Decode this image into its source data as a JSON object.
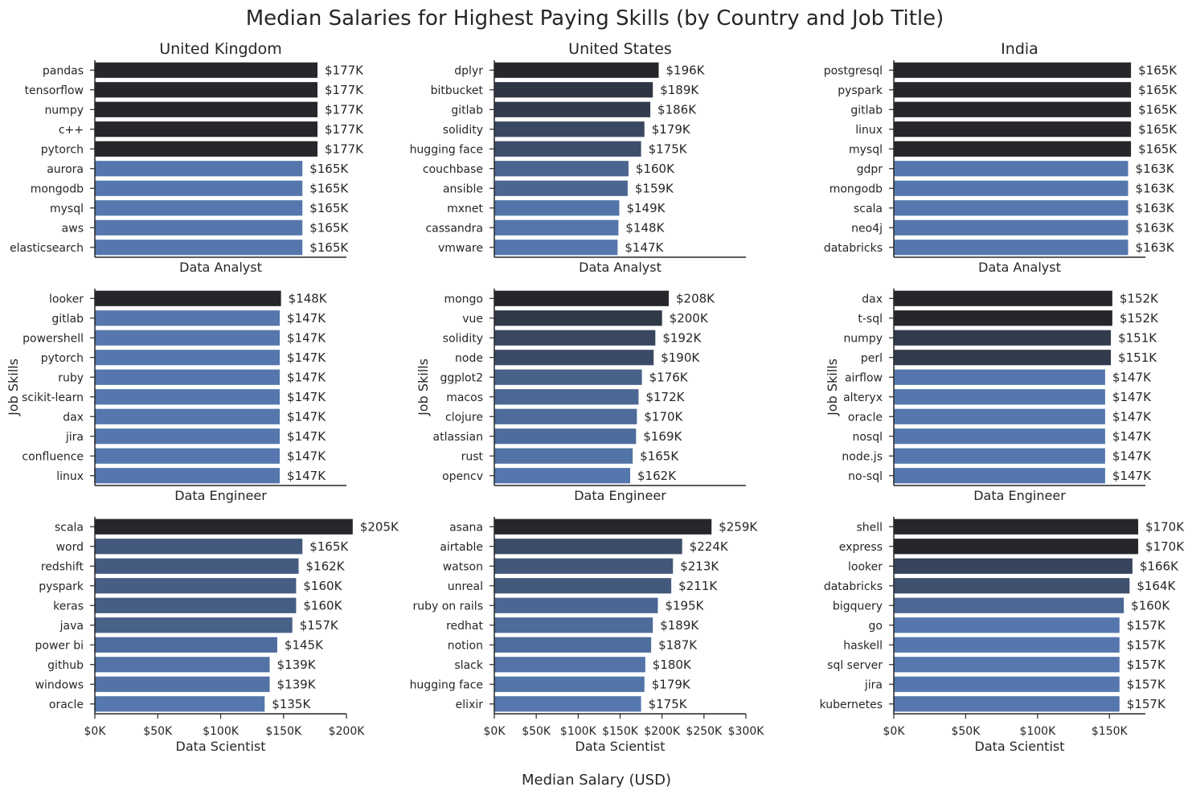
{
  "title": "Median Salaries for Highest Paying Skills (by Country and Job Title)",
  "x_label": "Median Salary (USD)",
  "y_label": "Job Skills",
  "colors": {
    "dark": "#25272b",
    "light": "#5577ad",
    "axis": "#262626",
    "text": "#262626"
  },
  "chart_data": [
    {
      "type": "bar",
      "orientation": "horizontal",
      "country": "United Kingdom",
      "job_title": "Data Analyst",
      "xlim": [
        0,
        200000
      ],
      "xticks": [],
      "categories": [
        "pandas",
        "tensorflow",
        "numpy",
        "c++",
        "pytorch",
        "aurora",
        "mongodb",
        "mysql",
        "aws",
        "elasticsearch"
      ],
      "values": [
        177000,
        177000,
        177000,
        177000,
        177000,
        165000,
        165000,
        165000,
        165000,
        165000
      ],
      "labels": [
        "$177K",
        "$177K",
        "$177K",
        "$177K",
        "$177K",
        "$165K",
        "$165K",
        "$165K",
        "$165K",
        "$165K"
      ]
    },
    {
      "type": "bar",
      "orientation": "horizontal",
      "country": "United States",
      "job_title": "Data Analyst",
      "xlim": [
        0,
        300000
      ],
      "xticks": [],
      "categories": [
        "dplyr",
        "bitbucket",
        "gitlab",
        "solidity",
        "hugging face",
        "couchbase",
        "ansible",
        "mxnet",
        "cassandra",
        "vmware"
      ],
      "values": [
        196000,
        189000,
        186000,
        179000,
        175000,
        160000,
        159000,
        149000,
        148000,
        147000
      ],
      "labels": [
        "$196K",
        "$189K",
        "$186K",
        "$179K",
        "$175K",
        "$160K",
        "$159K",
        "$149K",
        "$148K",
        "$147K"
      ]
    },
    {
      "type": "bar",
      "orientation": "horizontal",
      "country": "India",
      "job_title": "Data Analyst",
      "xlim": [
        0,
        175000
      ],
      "xticks": [],
      "categories": [
        "postgresql",
        "pyspark",
        "gitlab",
        "linux",
        "mysql",
        "gdpr",
        "mongodb",
        "scala",
        "neo4j",
        "databricks"
      ],
      "values": [
        165000,
        165000,
        165000,
        165000,
        165000,
        163000,
        163000,
        163000,
        163000,
        163000
      ],
      "labels": [
        "$165K",
        "$165K",
        "$165K",
        "$165K",
        "$165K",
        "$163K",
        "$163K",
        "$163K",
        "$163K",
        "$163K"
      ]
    },
    {
      "type": "bar",
      "orientation": "horizontal",
      "country": "",
      "job_title": "Data Engineer",
      "xlim": [
        0,
        200000
      ],
      "xticks": [],
      "categories": [
        "looker",
        "gitlab",
        "powershell",
        "pytorch",
        "ruby",
        "scikit-learn",
        "dax",
        "jira",
        "confluence",
        "linux"
      ],
      "values": [
        148000,
        147000,
        147000,
        147000,
        147000,
        147000,
        147000,
        147000,
        147000,
        147000
      ],
      "labels": [
        "$148K",
        "$147K",
        "$147K",
        "$147K",
        "$147K",
        "$147K",
        "$147K",
        "$147K",
        "$147K",
        "$147K"
      ]
    },
    {
      "type": "bar",
      "orientation": "horizontal",
      "country": "",
      "job_title": "Data Engineer",
      "xlim": [
        0,
        300000
      ],
      "xticks": [],
      "categories": [
        "mongo",
        "vue",
        "solidity",
        "node",
        "ggplot2",
        "macos",
        "clojure",
        "atlassian",
        "rust",
        "opencv"
      ],
      "values": [
        208000,
        200000,
        192000,
        190000,
        176000,
        172000,
        170000,
        169000,
        165000,
        162000
      ],
      "labels": [
        "$208K",
        "$200K",
        "$192K",
        "$190K",
        "$176K",
        "$172K",
        "$170K",
        "$169K",
        "$165K",
        "$162K"
      ]
    },
    {
      "type": "bar",
      "orientation": "horizontal",
      "country": "",
      "job_title": "Data Engineer",
      "xlim": [
        0,
        175000
      ],
      "xticks": [],
      "categories": [
        "dax",
        "t-sql",
        "numpy",
        "perl",
        "airflow",
        "alteryx",
        "oracle",
        "nosql",
        "node.js",
        "no-sql"
      ],
      "values": [
        152000,
        152000,
        151000,
        151000,
        147000,
        147000,
        147000,
        147000,
        147000,
        147000
      ],
      "labels": [
        "$152K",
        "$152K",
        "$151K",
        "$151K",
        "$147K",
        "$147K",
        "$147K",
        "$147K",
        "$147K",
        "$147K"
      ]
    },
    {
      "type": "bar",
      "orientation": "horizontal",
      "country": "",
      "job_title": "Data Scientist",
      "xlim": [
        0,
        200000
      ],
      "xticks": [
        {
          "v": 0,
          "t": "$0K"
        },
        {
          "v": 50000,
          "t": "$50K"
        },
        {
          "v": 100000,
          "t": "$100K"
        },
        {
          "v": 150000,
          "t": "$150K"
        },
        {
          "v": 200000,
          "t": "$200K"
        }
      ],
      "categories": [
        "scala",
        "word",
        "redshift",
        "pyspark",
        "keras",
        "java",
        "power bi",
        "github",
        "windows",
        "oracle"
      ],
      "values": [
        205000,
        165000,
        162000,
        160000,
        160000,
        157000,
        145000,
        139000,
        139000,
        135000
      ],
      "labels": [
        "$205K",
        "$165K",
        "$162K",
        "$160K",
        "$160K",
        "$157K",
        "$145K",
        "$139K",
        "$139K",
        "$135K"
      ]
    },
    {
      "type": "bar",
      "orientation": "horizontal",
      "country": "",
      "job_title": "Data Scientist",
      "xlim": [
        0,
        300000
      ],
      "xticks": [
        {
          "v": 0,
          "t": "$0K"
        },
        {
          "v": 50000,
          "t": "$50K"
        },
        {
          "v": 100000,
          "t": "$100K"
        },
        {
          "v": 150000,
          "t": "$150K"
        },
        {
          "v": 200000,
          "t": "$200K"
        },
        {
          "v": 250000,
          "t": "$250K"
        },
        {
          "v": 300000,
          "t": "$300K"
        }
      ],
      "categories": [
        "asana",
        "airtable",
        "watson",
        "unreal",
        "ruby on rails",
        "redhat",
        "notion",
        "slack",
        "hugging face",
        "elixir"
      ],
      "values": [
        259000,
        224000,
        213000,
        211000,
        195000,
        189000,
        187000,
        180000,
        179000,
        175000
      ],
      "labels": [
        "$259K",
        "$224K",
        "$213K",
        "$211K",
        "$195K",
        "$189K",
        "$187K",
        "$180K",
        "$179K",
        "$175K"
      ]
    },
    {
      "type": "bar",
      "orientation": "horizontal",
      "country": "",
      "job_title": "Data Scientist",
      "xlim": [
        0,
        175000
      ],
      "xticks": [
        {
          "v": 0,
          "t": "$0K"
        },
        {
          "v": 50000,
          "t": "$50K"
        },
        {
          "v": 100000,
          "t": "$100K"
        },
        {
          "v": 150000,
          "t": "$150K"
        }
      ],
      "categories": [
        "shell",
        "express",
        "looker",
        "databricks",
        "bigquery",
        "go",
        "haskell",
        "sql server",
        "jira",
        "kubernetes"
      ],
      "values": [
        170000,
        170000,
        166000,
        164000,
        160000,
        157000,
        157000,
        157000,
        157000,
        157000
      ],
      "labels": [
        "$170K",
        "$170K",
        "$166K",
        "$164K",
        "$160K",
        "$157K",
        "$157K",
        "$157K",
        "$157K",
        "$157K"
      ]
    }
  ]
}
